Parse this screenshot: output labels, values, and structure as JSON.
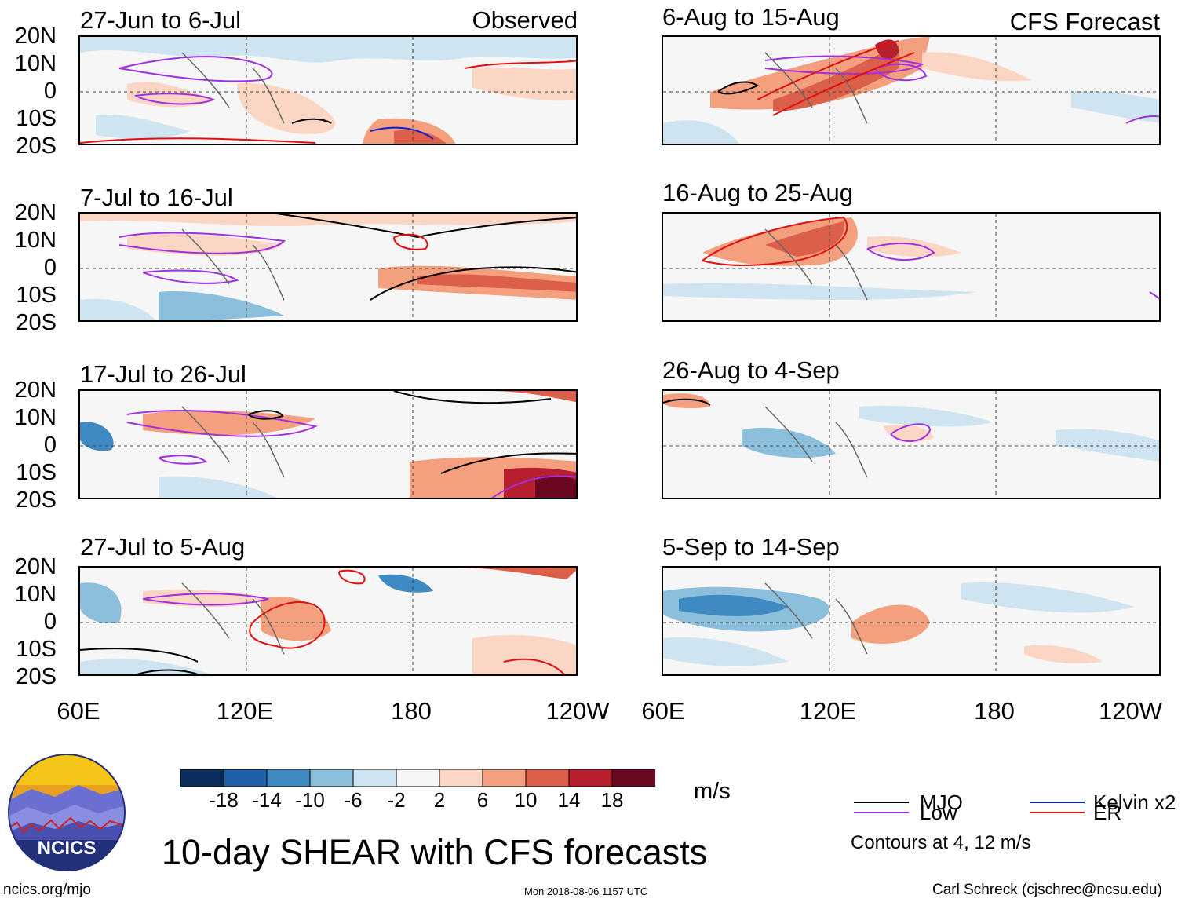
{
  "left_column": {
    "panels": [
      {
        "title": "27-Jun to 6-Jul",
        "label": "Observed"
      },
      {
        "title": "7-Jul to 16-Jul",
        "label": ""
      },
      {
        "title": "17-Jul to 26-Jul",
        "label": ""
      },
      {
        "title": "27-Jul to 5-Aug",
        "label": ""
      }
    ]
  },
  "right_column": {
    "panels": [
      {
        "title": "6-Aug to 15-Aug",
        "label": "CFS Forecast"
      },
      {
        "title": "16-Aug to 25-Aug",
        "label": ""
      },
      {
        "title": "26-Aug to 4-Sep",
        "label": ""
      },
      {
        "title": "5-Sep to 14-Sep",
        "label": ""
      }
    ]
  },
  "latitude_ticks": [
    "20N",
    "10N",
    "0",
    "10S",
    "20S"
  ],
  "longitude_ticks": [
    "60E",
    "120E",
    "180",
    "120W"
  ],
  "right_longitude_ticks": [
    "60E",
    "120E",
    "180",
    "120W"
  ],
  "colorbar": {
    "labels": [
      "-18",
      "-14",
      "-10",
      "-6",
      "-2",
      "2",
      "6",
      "10",
      "14",
      "18"
    ],
    "colors": [
      "#0b2e5e",
      "#1f5ea8",
      "#3f8ac3",
      "#8cbfdc",
      "#cfe4f1",
      "#f6f6f6",
      "#fcd6c4",
      "#f4a07e",
      "#dc5f4a",
      "#b81f2e",
      "#6b0720"
    ],
    "units": "m/s"
  },
  "legend": {
    "items": [
      {
        "label": "MJO",
        "color": "#000000"
      },
      {
        "label": "Kelvin x2",
        "color": "#1020d0"
      },
      {
        "label": "Low",
        "color": "#a030e0"
      },
      {
        "label": "ER",
        "color": "#e01010"
      }
    ],
    "note": "Contours at 4, 12 m/s"
  },
  "main_title": "10-day SHEAR with CFS forecasts",
  "logo_text": "NCICS",
  "footer": {
    "url": "ncics.org/mjo",
    "timestamp": "Mon 2018-08-06 1157 UTC",
    "author": "Carl Schreck (cjschrec@ncsu.edu)"
  }
}
